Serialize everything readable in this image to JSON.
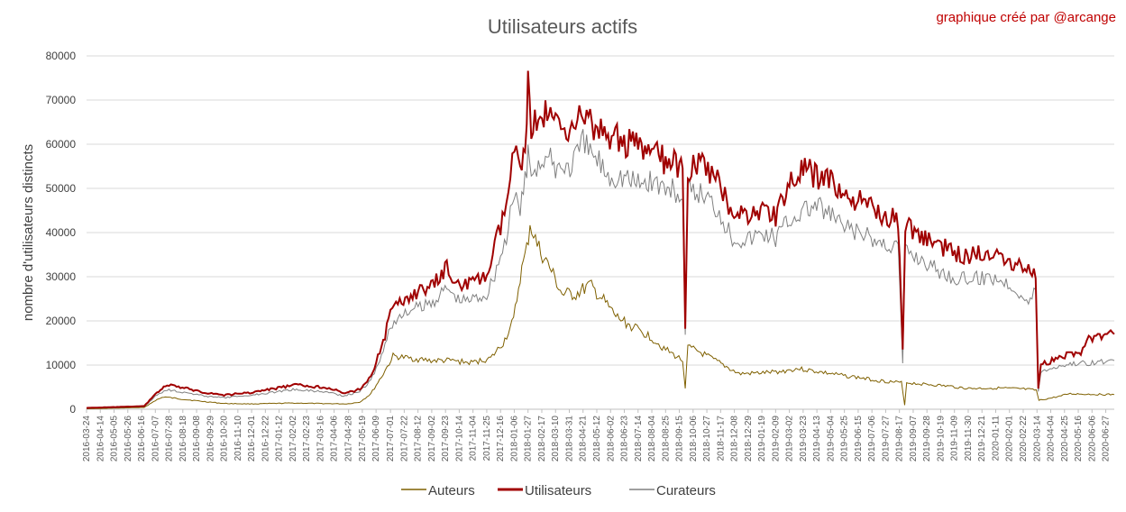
{
  "chart_data": {
    "type": "line",
    "title": "Utilisateurs actifs",
    "credit": "graphique créé par @arcange",
    "ylabel": "nombre d'utilisateurs distincts",
    "xlabel": "",
    "ylim": [
      0,
      80000
    ],
    "yticks": [
      "0",
      "10000",
      "20000",
      "30000",
      "40000",
      "50000",
      "60000",
      "70000",
      "80000"
    ],
    "grid": true,
    "legend_position": "bottom",
    "x_start": "2016-03-24",
    "x_end": "2020-07-10",
    "xticks": [
      "2016-03-24",
      "2016-04-14",
      "2016-05-05",
      "2016-05-26",
      "2016-06-16",
      "2016-07-07",
      "2016-07-28",
      "2016-08-18",
      "2016-09-08",
      "2016-09-29",
      "2016-10-20",
      "2016-11-10",
      "2016-12-01",
      "2016-12-22",
      "2017-01-12",
      "2017-02-02",
      "2017-02-23",
      "2017-03-16",
      "2017-04-06",
      "2017-04-28",
      "2017-05-19",
      "2017-06-09",
      "2017-07-01",
      "2017-07-22",
      "2017-08-12",
      "2017-09-02",
      "2017-09-23",
      "2017-10-14",
      "2017-11-04",
      "2017-11-25",
      "2017-12-16",
      "2018-01-06",
      "2018-01-27",
      "2018-02-17",
      "2018-03-10",
      "2018-03-31",
      "2018-04-21",
      "2018-05-12",
      "2018-06-02",
      "2018-06-23",
      "2018-07-14",
      "2018-08-04",
      "2018-08-25",
      "2018-09-15",
      "2018-10-06",
      "2018-10-27",
      "2018-11-17",
      "2018-12-08",
      "2018-12-29",
      "2019-01-19",
      "2019-02-09",
      "2019-03-02",
      "2019-03-23",
      "2019-04-13",
      "2019-05-04",
      "2019-05-25",
      "2019-06-15",
      "2019-07-06",
      "2019-07-27",
      "2019-08-17",
      "2019-09-07",
      "2019-09-28",
      "2019-10-19",
      "2019-11-09",
      "2019-11-30",
      "2019-12-21",
      "2020-01-11",
      "2020-02-01",
      "2020-02-22",
      "2020-03-14",
      "2020-04-04",
      "2020-04-25",
      "2020-05-16",
      "2020-06-06",
      "2020-06-27"
    ],
    "series": [
      {
        "name": "Auteurs",
        "color": "#7f6000",
        "points": [
          [
            "2016-03-24",
            100
          ],
          [
            "2016-06-20",
            400
          ],
          [
            "2016-07-07",
            2000
          ],
          [
            "2016-07-20",
            2800
          ],
          [
            "2016-08-10",
            2400
          ],
          [
            "2016-09-15",
            1800
          ],
          [
            "2016-10-20",
            1300
          ],
          [
            "2016-12-01",
            1200
          ],
          [
            "2017-02-01",
            1400
          ],
          [
            "2017-03-15",
            1300
          ],
          [
            "2017-04-25",
            1200
          ],
          [
            "2017-05-15",
            1600
          ],
          [
            "2017-06-01",
            3500
          ],
          [
            "2017-06-20",
            8000
          ],
          [
            "2017-07-05",
            12000
          ],
          [
            "2017-08-01",
            11500
          ],
          [
            "2017-09-01",
            11000
          ],
          [
            "2017-10-01",
            11000
          ],
          [
            "2017-11-01",
            10500
          ],
          [
            "2017-12-01",
            11500
          ],
          [
            "2017-12-20",
            15000
          ],
          [
            "2018-01-05",
            20000
          ],
          [
            "2018-01-15",
            30000
          ],
          [
            "2018-01-25",
            36000
          ],
          [
            "2018-01-30",
            42000
          ],
          [
            "2018-02-10",
            37000
          ],
          [
            "2018-03-01",
            32000
          ],
          [
            "2018-03-20",
            26000
          ],
          [
            "2018-04-10",
            26000
          ],
          [
            "2018-05-01",
            28000
          ],
          [
            "2018-05-20",
            25000
          ],
          [
            "2018-06-10",
            21000
          ],
          [
            "2018-07-01",
            19000
          ],
          [
            "2018-08-01",
            16500
          ],
          [
            "2018-08-25",
            13500
          ],
          [
            "2018-09-20",
            11000
          ],
          [
            "2018-09-24",
            5000
          ],
          [
            "2018-09-28",
            14000
          ],
          [
            "2018-10-15",
            13000
          ],
          [
            "2018-11-15",
            10500
          ],
          [
            "2018-12-15",
            8000
          ],
          [
            "2019-01-15",
            8200
          ],
          [
            "2019-02-15",
            8500
          ],
          [
            "2019-03-15",
            9200
          ],
          [
            "2019-04-15",
            8500
          ],
          [
            "2019-05-15",
            7800
          ],
          [
            "2019-06-15",
            7200
          ],
          [
            "2019-07-15",
            6500
          ],
          [
            "2019-08-20",
            6000
          ],
          [
            "2019-08-25",
            1000
          ],
          [
            "2019-08-28",
            6000
          ],
          [
            "2019-10-01",
            5600
          ],
          [
            "2019-11-01",
            5200
          ],
          [
            "2019-12-01",
            4700
          ],
          [
            "2020-01-15",
            4800
          ],
          [
            "2020-02-20",
            4600
          ],
          [
            "2020-03-13",
            4300
          ],
          [
            "2020-03-17",
            2000
          ],
          [
            "2020-04-20",
            3000
          ],
          [
            "2020-05-01",
            3500
          ],
          [
            "2020-07-10",
            3300
          ]
        ]
      },
      {
        "name": "Utilisateurs",
        "color": "#a00000",
        "points": [
          [
            "2016-03-24",
            300
          ],
          [
            "2016-06-20",
            700
          ],
          [
            "2016-07-07",
            3500
          ],
          [
            "2016-07-25",
            5500
          ],
          [
            "2016-08-20",
            4800
          ],
          [
            "2016-09-20",
            3800
          ],
          [
            "2016-10-20",
            3200
          ],
          [
            "2016-12-01",
            3800
          ],
          [
            "2017-01-10",
            4800
          ],
          [
            "2017-02-05",
            5500
          ],
          [
            "2017-03-01",
            5200
          ],
          [
            "2017-04-01",
            4800
          ],
          [
            "2017-04-20",
            3500
          ],
          [
            "2017-05-15",
            4500
          ],
          [
            "2017-06-01",
            7500
          ],
          [
            "2017-06-20",
            15000
          ],
          [
            "2017-07-01",
            22000
          ],
          [
            "2017-08-01",
            26000
          ],
          [
            "2017-09-01",
            27500
          ],
          [
            "2017-09-25",
            32000
          ],
          [
            "2017-10-15",
            28000
          ],
          [
            "2017-11-01",
            28500
          ],
          [
            "2017-11-25",
            30000
          ],
          [
            "2017-12-10",
            38000
          ],
          [
            "2017-12-25",
            46000
          ],
          [
            "2018-01-06",
            58000
          ],
          [
            "2018-01-15",
            55000
          ],
          [
            "2018-01-25",
            64000
          ],
          [
            "2018-01-27",
            75000
          ],
          [
            "2018-02-01",
            64000
          ],
          [
            "2018-02-20",
            67000
          ],
          [
            "2018-03-10",
            65000
          ],
          [
            "2018-04-01",
            64000
          ],
          [
            "2018-04-21",
            67000
          ],
          [
            "2018-05-10",
            63000
          ],
          [
            "2018-06-01",
            62000
          ],
          [
            "2018-06-20",
            61000
          ],
          [
            "2018-07-14",
            59000
          ],
          [
            "2018-08-04",
            58000
          ],
          [
            "2018-08-25",
            56000
          ],
          [
            "2018-09-15",
            55000
          ],
          [
            "2018-09-20",
            53000
          ],
          [
            "2018-09-24",
            19000
          ],
          [
            "2018-09-28",
            55000
          ],
          [
            "2018-10-20",
            55000
          ],
          [
            "2018-11-15",
            51000
          ],
          [
            "2018-12-05",
            45000
          ],
          [
            "2018-12-29",
            44000
          ],
          [
            "2019-01-20",
            45000
          ],
          [
            "2019-02-09",
            44000
          ],
          [
            "2019-03-02",
            51000
          ],
          [
            "2019-03-23",
            54000
          ],
          [
            "2019-04-10",
            53000
          ],
          [
            "2019-05-04",
            52000
          ],
          [
            "2019-05-25",
            48000
          ],
          [
            "2019-06-15",
            47000
          ],
          [
            "2019-07-10",
            45000
          ],
          [
            "2019-08-15",
            43000
          ],
          [
            "2019-08-22",
            14000
          ],
          [
            "2019-08-26",
            42000
          ],
          [
            "2019-09-20",
            39000
          ],
          [
            "2019-10-20",
            37000
          ],
          [
            "2019-11-15",
            35000
          ],
          [
            "2019-12-10",
            35000
          ],
          [
            "2020-01-10",
            36000
          ],
          [
            "2020-02-10",
            33000
          ],
          [
            "2020-03-01",
            32000
          ],
          [
            "2020-03-12",
            31000
          ],
          [
            "2020-03-16",
            4500
          ],
          [
            "2020-03-20",
            10000
          ],
          [
            "2020-04-20",
            12000
          ],
          [
            "2020-05-20",
            13000
          ],
          [
            "2020-06-01",
            16000
          ],
          [
            "2020-07-10",
            17000
          ]
        ]
      },
      {
        "name": "Curateurs",
        "color": "#808080",
        "points": [
          [
            "2016-03-24",
            200
          ],
          [
            "2016-06-20",
            500
          ],
          [
            "2016-07-07",
            3000
          ],
          [
            "2016-07-25",
            4500
          ],
          [
            "2016-08-20",
            3800
          ],
          [
            "2016-09-20",
            3000
          ],
          [
            "2016-10-20",
            2600
          ],
          [
            "2016-12-01",
            3200
          ],
          [
            "2017-01-10",
            4000
          ],
          [
            "2017-02-05",
            4500
          ],
          [
            "2017-03-01",
            4200
          ],
          [
            "2017-04-01",
            3800
          ],
          [
            "2017-04-20",
            3000
          ],
          [
            "2017-05-15",
            4000
          ],
          [
            "2017-06-01",
            6500
          ],
          [
            "2017-06-20",
            13000
          ],
          [
            "2017-07-01",
            19000
          ],
          [
            "2017-08-01",
            22500
          ],
          [
            "2017-09-01",
            24000
          ],
          [
            "2017-09-25",
            27500
          ],
          [
            "2017-10-15",
            24500
          ],
          [
            "2017-11-01",
            25000
          ],
          [
            "2017-11-25",
            26000
          ],
          [
            "2017-12-10",
            32000
          ],
          [
            "2017-12-25",
            39000
          ],
          [
            "2018-01-06",
            48000
          ],
          [
            "2018-01-15",
            46000
          ],
          [
            "2018-01-25",
            53000
          ],
          [
            "2018-01-27",
            58000
          ],
          [
            "2018-02-01",
            54000
          ],
          [
            "2018-02-20",
            57000
          ],
          [
            "2018-03-10",
            55000
          ],
          [
            "2018-04-01",
            55000
          ],
          [
            "2018-04-21",
            60000
          ],
          [
            "2018-05-10",
            57000
          ],
          [
            "2018-06-01",
            53000
          ],
          [
            "2018-06-20",
            53000
          ],
          [
            "2018-07-14",
            51000
          ],
          [
            "2018-08-04",
            52000
          ],
          [
            "2018-08-25",
            50000
          ],
          [
            "2018-09-15",
            49000
          ],
          [
            "2018-09-20",
            47000
          ],
          [
            "2018-09-24",
            16000
          ],
          [
            "2018-09-28",
            49000
          ],
          [
            "2018-10-20",
            49000
          ],
          [
            "2018-11-15",
            45000
          ],
          [
            "2018-12-05",
            39000
          ],
          [
            "2018-12-29",
            38500
          ],
          [
            "2019-01-20",
            40000
          ],
          [
            "2019-02-09",
            39000
          ],
          [
            "2019-03-02",
            43000
          ],
          [
            "2019-03-23",
            45000
          ],
          [
            "2019-04-10",
            46000
          ],
          [
            "2019-05-04",
            44000
          ],
          [
            "2019-05-25",
            41000
          ],
          [
            "2019-06-15",
            40000
          ],
          [
            "2019-07-10",
            38000
          ],
          [
            "2019-08-15",
            37000
          ],
          [
            "2019-08-22",
            10500
          ],
          [
            "2019-08-26",
            36000
          ],
          [
            "2019-09-20",
            34000
          ],
          [
            "2019-10-20",
            31000
          ],
          [
            "2019-11-15",
            29500
          ],
          [
            "2019-12-10",
            29500
          ],
          [
            "2020-01-10",
            30000
          ],
          [
            "2020-02-10",
            27500
          ],
          [
            "2020-03-01",
            24000
          ],
          [
            "2020-03-12",
            27000
          ],
          [
            "2020-03-16",
            4200
          ],
          [
            "2020-03-20",
            8500
          ],
          [
            "2020-04-20",
            10000
          ],
          [
            "2020-05-20",
            10500
          ],
          [
            "2020-06-01",
            10500
          ],
          [
            "2020-07-10",
            11000
          ]
        ]
      }
    ]
  }
}
